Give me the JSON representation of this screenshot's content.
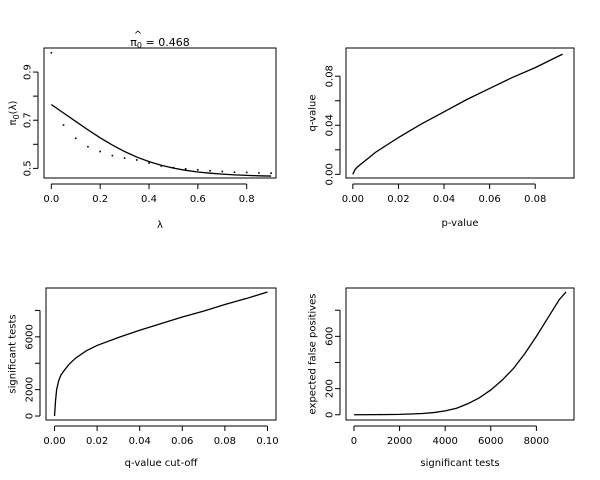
{
  "chart_data": [
    {
      "type": "scatter",
      "title": "π̂₀ = 0.468",
      "title_parts": {
        "symbol": "π",
        "hat": "^",
        "sub": "0",
        "value": "= 0.468"
      },
      "xlabel": "λ",
      "ylabel": "π₀(λ)",
      "ylabel_parts": {
        "symbol": "π",
        "sub": "0",
        "arg": "(λ)"
      },
      "xlim": [
        -0.03,
        0.92
      ],
      "ylim": [
        0.46,
        1.0
      ],
      "xticks": [
        0.0,
        0.2,
        0.4,
        0.6,
        0.8
      ],
      "xticklabels": [
        "0.0",
        "0.2",
        "0.4",
        "0.6",
        "0.8"
      ],
      "yticks": [
        0.5,
        0.7,
        0.9
      ],
      "yticklabels": [
        "0.5",
        "0.7",
        "0.9"
      ],
      "yticks_minor": [
        0.6,
        0.8
      ],
      "series": [
        {
          "kind": "points",
          "x": [
            0.0,
            0.05,
            0.1,
            0.15,
            0.2,
            0.25,
            0.3,
            0.35,
            0.4,
            0.45,
            0.5,
            0.55,
            0.6,
            0.65,
            0.7,
            0.75,
            0.8,
            0.85,
            0.9
          ],
          "y": [
            0.98,
            0.68,
            0.625,
            0.59,
            0.57,
            0.553,
            0.543,
            0.535,
            0.522,
            0.51,
            0.503,
            0.498,
            0.494,
            0.49,
            0.487,
            0.484,
            0.483,
            0.481,
            0.48
          ]
        },
        {
          "kind": "line",
          "x": [
            0.0,
            0.05,
            0.1,
            0.15,
            0.2,
            0.25,
            0.3,
            0.35,
            0.4,
            0.45,
            0.5,
            0.55,
            0.6,
            0.65,
            0.7,
            0.75,
            0.8,
            0.85,
            0.9
          ],
          "y": [
            0.765,
            0.73,
            0.695,
            0.66,
            0.627,
            0.597,
            0.57,
            0.547,
            0.528,
            0.513,
            0.501,
            0.492,
            0.485,
            0.48,
            0.476,
            0.473,
            0.471,
            0.469,
            0.468
          ]
        }
      ]
    },
    {
      "type": "line",
      "xlabel": "p-value",
      "ylabel": "q-value",
      "xlim": [
        -0.003,
        0.097
      ],
      "ylim": [
        -0.003,
        0.103
      ],
      "xticks": [
        0.0,
        0.02,
        0.04,
        0.06,
        0.08
      ],
      "xticklabels": [
        "0.00",
        "0.02",
        "0.04",
        "0.06",
        "0.08"
      ],
      "yticks": [
        0.0,
        0.04,
        0.08
      ],
      "yticklabels": [
        "0.00",
        "0.04",
        "0.08"
      ],
      "yticks_minor": [
        0.02,
        0.06
      ],
      "series": [
        {
          "x": [
            0.0,
            0.001,
            0.002,
            0.004,
            0.006,
            0.01,
            0.015,
            0.02,
            0.03,
            0.04,
            0.05,
            0.06,
            0.07,
            0.08,
            0.092
          ],
          "y": [
            0.0,
            0.004,
            0.006,
            0.009,
            0.012,
            0.018,
            0.024,
            0.03,
            0.041,
            0.051,
            0.061,
            0.07,
            0.079,
            0.087,
            0.098
          ]
        }
      ]
    },
    {
      "type": "line",
      "xlabel": "q-value cut-off",
      "ylabel": "significant tests",
      "xlim": [
        -0.004,
        0.104
      ],
      "ylim": [
        -300,
        9700
      ],
      "xticks": [
        0.0,
        0.02,
        0.04,
        0.06,
        0.08,
        0.1
      ],
      "xticklabels": [
        "0.00",
        "0.02",
        "0.04",
        "0.06",
        "0.08",
        "0.10"
      ],
      "yticks": [
        0,
        2000,
        6000
      ],
      "yticklabels": [
        "0",
        "2000",
        "6000"
      ],
      "yticks_minor": [
        4000,
        8000
      ],
      "series": [
        {
          "x": [
            0.0,
            0.0005,
            0.001,
            0.002,
            0.003,
            0.005,
            0.007,
            0.01,
            0.015,
            0.02,
            0.03,
            0.04,
            0.05,
            0.06,
            0.07,
            0.08,
            0.09,
            0.1
          ],
          "y": [
            0,
            1200,
            2000,
            2700,
            3100,
            3550,
            3950,
            4400,
            4950,
            5350,
            5950,
            6500,
            7000,
            7500,
            7950,
            8450,
            8900,
            9400
          ]
        }
      ]
    },
    {
      "type": "line",
      "xlabel": "significant tests",
      "ylabel": "expected false positives",
      "xlim": [
        -350,
        9650
      ],
      "ylim": [
        -40,
        970
      ],
      "xticks": [
        0,
        2000,
        4000,
        6000,
        8000
      ],
      "xticklabels": [
        "0",
        "2000",
        "4000",
        "6000",
        "8000"
      ],
      "yticks": [
        0,
        200,
        600
      ],
      "yticklabels": [
        "0",
        "200",
        "600"
      ],
      "yticks_minor": [
        400,
        800
      ],
      "series": [
        {
          "x": [
            0,
            1000,
            2000,
            2500,
            3000,
            3500,
            4000,
            4500,
            5000,
            5500,
            6000,
            6500,
            7000,
            7500,
            8000,
            8500,
            9000,
            9300
          ],
          "y": [
            0,
            1,
            3,
            6,
            10,
            17,
            30,
            50,
            85,
            130,
            190,
            265,
            355,
            470,
            600,
            740,
            880,
            940
          ]
        }
      ]
    }
  ]
}
